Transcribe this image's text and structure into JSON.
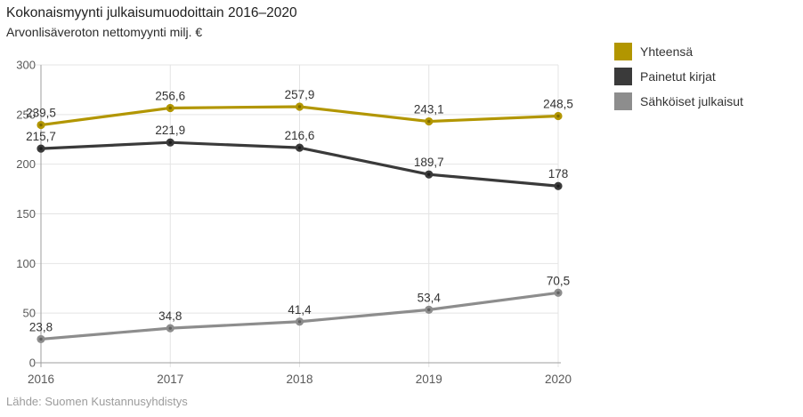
{
  "header": {
    "title": "Kokonaismyynti julkaisumuodoittain 2016–2020",
    "subtitle": "Arvonlisäveroton nettomyynti milj. €"
  },
  "footer": {
    "source": "Lähde: Suomen Kustannusyhdistys"
  },
  "colors": {
    "grid": "#e4e4e4",
    "axis": "#9e9e9e",
    "tick_label": "#595959",
    "value_label": "#333333"
  },
  "chart_data": {
    "type": "line",
    "title": "Kokonaismyynti julkaisumuodoittain 2016–2020",
    "subtitle": "Arvonlisäveroton nettomyynti milj. €",
    "x": [
      "2016",
      "2017",
      "2018",
      "2019",
      "2020"
    ],
    "series": [
      {
        "name": "Yhteensä",
        "color": "#b29600",
        "marker_core": "#7d6900",
        "values": [
          239.5,
          256.6,
          257.9,
          243.1,
          248.5
        ],
        "labels": [
          "239,5",
          "256,6",
          "257,9",
          "243,1",
          "248,5"
        ]
      },
      {
        "name": "Painetut kirjat",
        "color": "#3a3a3a",
        "marker_core": "#1c1c1c",
        "values": [
          215.7,
          221.9,
          216.6,
          189.7,
          178
        ],
        "labels": [
          "215,7",
          "221,9",
          "216,6",
          "189,7",
          "178"
        ]
      },
      {
        "name": "Sähköiset julkaisut",
        "color": "#8d8d8d",
        "marker_core": "#616161",
        "values": [
          23.8,
          34.8,
          41.4,
          53.4,
          70.5
        ],
        "labels": [
          "23,8",
          "34,8",
          "41,4",
          "53,4",
          "70,5"
        ]
      }
    ],
    "ylim": [
      0,
      300
    ],
    "yticks": [
      0,
      50,
      100,
      150,
      200,
      250,
      300
    ],
    "grid": true,
    "legend_position": "right",
    "xlabel": "",
    "ylabel": ""
  }
}
